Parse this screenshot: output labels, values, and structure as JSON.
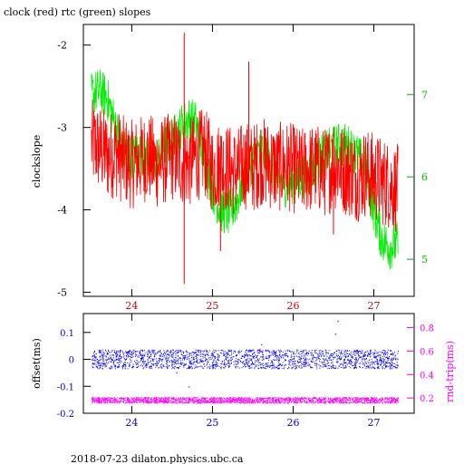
{
  "title": "clock (red) rtc (green) slopes",
  "footer": "2018-07-23  dilaton.physics.ubc.ca",
  "colors": {
    "clock": "#ff0000",
    "rtc": "#00ee00",
    "offset": "#0000ff",
    "rndtrip": "#ff00ff",
    "frame": "#000000"
  },
  "chart_data": [
    {
      "type": "line",
      "title": "clock (red) rtc (green) slopes",
      "x_ticks": [
        "24",
        "25",
        "26",
        "27"
      ],
      "x_tick_values": [
        24,
        25,
        26,
        27
      ],
      "xlim": [
        23.4,
        27.5
      ],
      "ylabel": "clockslope",
      "ylim": [
        -5.05,
        -1.75
      ],
      "y_ticks": [
        "-2",
        "-3",
        "-4",
        "-5"
      ],
      "y_tick_values": [
        -2,
        -3,
        -4,
        -5
      ],
      "y2lim": [
        4.55,
        7.85
      ],
      "y2_ticks": [
        "7",
        "6",
        "5"
      ],
      "y2_tick_values": [
        7,
        6,
        5
      ],
      "series": [
        {
          "name": "clock",
          "axis": "left",
          "x": [
            23.5,
            23.6,
            23.7,
            23.8,
            23.9,
            24.0,
            24.1,
            24.2,
            24.3,
            24.4,
            24.5,
            24.6,
            24.7,
            24.8,
            24.9,
            25.0,
            25.1,
            25.2,
            25.3,
            25.4,
            25.5,
            25.6,
            25.7,
            25.8,
            25.9,
            26.0,
            26.1,
            26.2,
            26.3,
            26.4,
            26.5,
            26.6,
            26.7,
            26.8,
            26.9,
            27.0,
            27.1,
            27.2,
            27.3
          ],
          "y": [
            -3.2,
            -3.25,
            -3.35,
            -3.3,
            -3.4,
            -3.45,
            -3.4,
            -3.35,
            -3.45,
            -3.4,
            -3.35,
            -3.4,
            -3.45,
            -3.35,
            -3.3,
            -3.5,
            -3.45,
            -3.5,
            -3.55,
            -3.45,
            -3.5,
            -3.4,
            -3.45,
            -3.5,
            -3.45,
            -3.5,
            -3.55,
            -3.5,
            -3.5,
            -3.55,
            -3.45,
            -3.5,
            -3.55,
            -3.6,
            -3.55,
            -3.6,
            -3.65,
            -3.7,
            -3.75
          ],
          "spread": 0.55
        },
        {
          "name": "rtc",
          "axis": "right",
          "x": [
            23.5,
            23.6,
            23.7,
            23.8,
            23.9,
            24.0,
            24.1,
            24.2,
            24.3,
            24.4,
            24.5,
            24.6,
            24.7,
            24.8,
            24.9,
            25.0,
            25.1,
            25.2,
            25.3,
            25.4,
            25.5,
            25.6,
            25.7,
            25.8,
            25.9,
            26.0,
            26.1,
            26.2,
            26.3,
            26.4,
            26.5,
            26.6,
            26.7,
            26.8,
            26.9,
            27.0,
            27.1,
            27.2,
            27.3
          ],
          "y": [
            7.0,
            7.05,
            6.95,
            6.6,
            6.3,
            6.25,
            6.3,
            6.25,
            6.2,
            6.35,
            6.45,
            6.6,
            6.7,
            6.65,
            6.2,
            5.85,
            5.6,
            5.55,
            5.7,
            6.0,
            6.2,
            6.35,
            6.2,
            6.0,
            5.9,
            5.95,
            6.0,
            6.05,
            6.2,
            6.3,
            6.35,
            6.4,
            6.35,
            6.25,
            6.1,
            5.6,
            5.25,
            5.15,
            5.2
          ],
          "spread": 0.28
        }
      ]
    },
    {
      "type": "scatter",
      "x_ticks": [
        "24",
        "25",
        "26",
        "27"
      ],
      "x_tick_values": [
        24,
        25,
        26,
        27
      ],
      "xlim": [
        23.4,
        27.5
      ],
      "ylabel": "offset(ms)",
      "ylim": [
        -0.2,
        0.17
      ],
      "y_ticks": [
        "0.1",
        "0",
        "-0.1",
        "-0.2"
      ],
      "y_tick_values": [
        0.1,
        0,
        -0.1,
        -0.2
      ],
      "y2label": "rnd-trip(ms)",
      "y2lim": [
        0.07,
        0.92
      ],
      "y2_ticks": [
        "0.8",
        "0.6",
        "0.4",
        "0.2"
      ],
      "y2_tick_values": [
        0.8,
        0.6,
        0.4,
        0.2
      ],
      "series": [
        {
          "name": "offset",
          "axis": "left",
          "x_range": [
            23.5,
            27.3
          ],
          "center": 0.0,
          "spread": 0.035
        },
        {
          "name": "rnd-trip",
          "axis": "right",
          "x_range": [
            23.5,
            27.3
          ],
          "center": 0.18,
          "spread": 0.025
        }
      ]
    }
  ]
}
